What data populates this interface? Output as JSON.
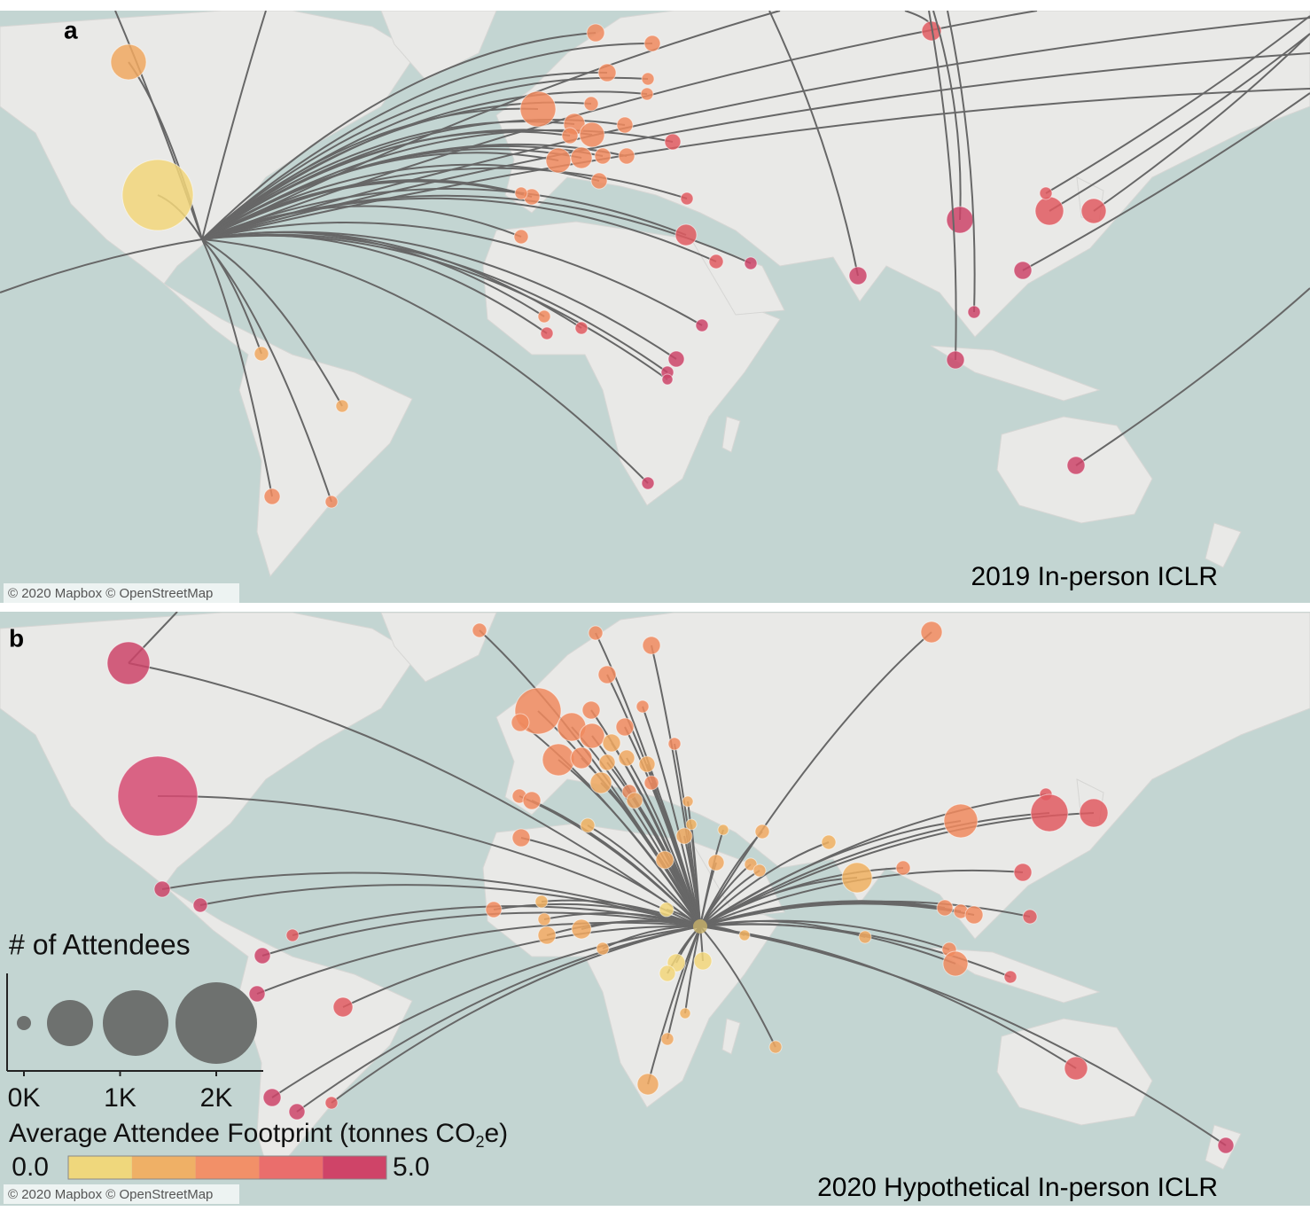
{
  "panels": [
    {
      "label": "a",
      "caption": "2019 In-person ICLR",
      "attribution": "© 2020 Mapbox © OpenStreetMap"
    },
    {
      "label": "b",
      "caption": "2020 Hypothetical In-person ICLR",
      "attribution": "© 2020 Mapbox © OpenStreetMap"
    }
  ],
  "legend": {
    "size_title": "# of Attendees",
    "size_ticks": [
      {
        "value": 0,
        "label": "0K"
      },
      {
        "value": 1000,
        "label": "1K"
      },
      {
        "value": 2000,
        "label": "2K"
      }
    ],
    "color_title": "Average Attendee Footprint (tonnes CO",
    "color_title_subscript": "2",
    "color_title_end": "e)",
    "color_ticks": [
      {
        "value": 0,
        "label": "0.0"
      },
      {
        "value": 5,
        "label": "5.0"
      }
    ],
    "colors": [
      "#efd77c",
      "#efb066",
      "#f29068",
      "#ea6e6c",
      "#cf4468"
    ]
  }
}
